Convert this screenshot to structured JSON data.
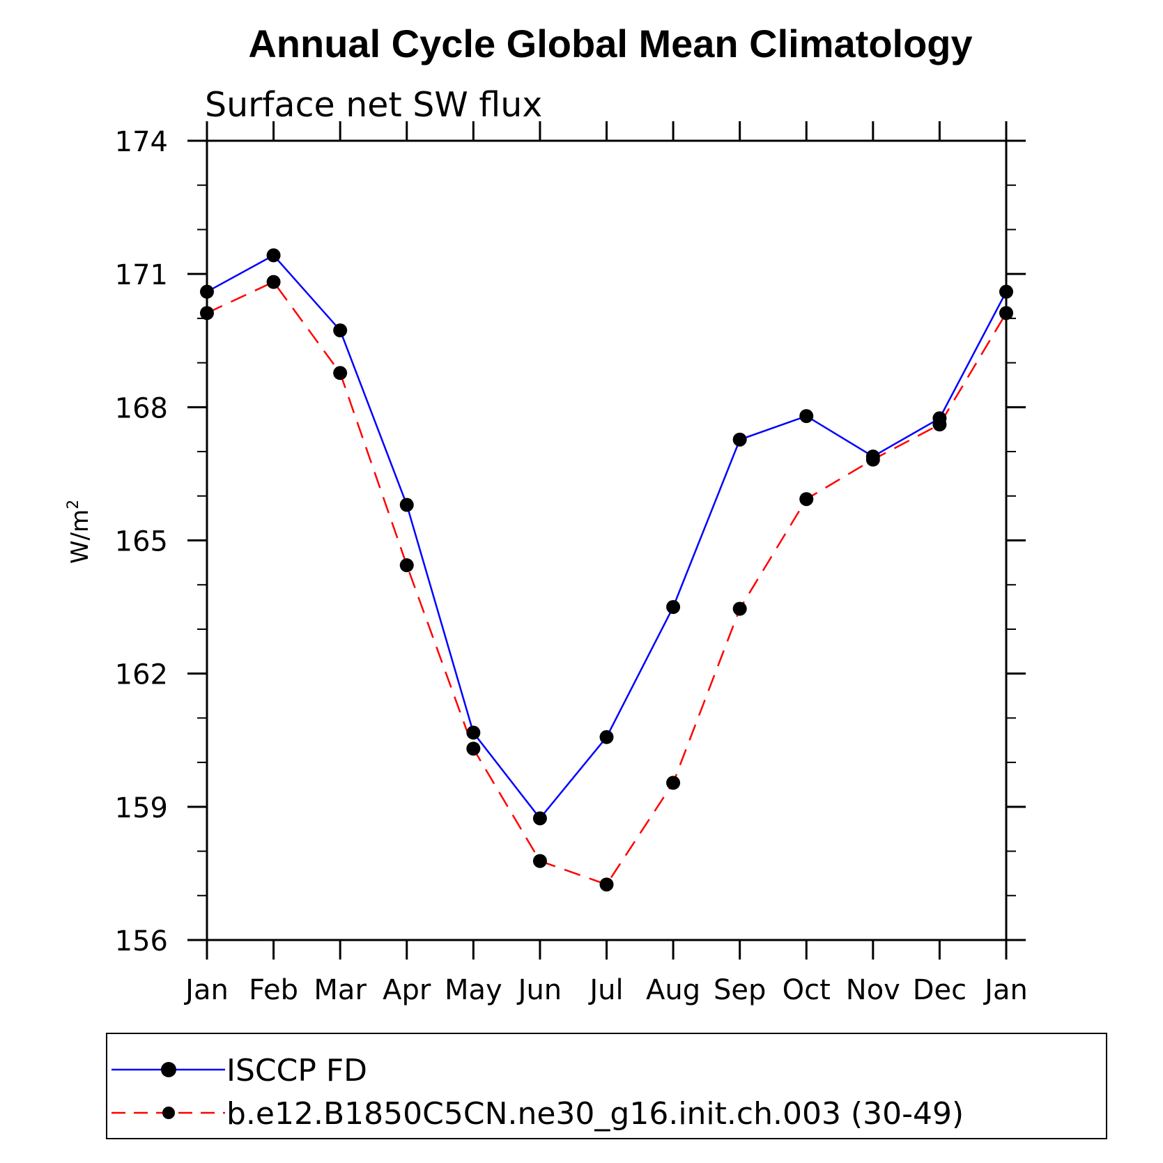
{
  "chart_data": {
    "type": "line",
    "title": "Annual Cycle Global Mean Climatology",
    "subtitle": "Surface net SW flux",
    "ylabel_base": "W/m",
    "ylabel_sup": "2",
    "xlabel": "",
    "categories": [
      "Jan",
      "Feb",
      "Mar",
      "Apr",
      "May",
      "Jun",
      "Jul",
      "Aug",
      "Sep",
      "Oct",
      "Nov",
      "Dec",
      "Jan"
    ],
    "ylim": [
      156,
      174
    ],
    "yticks": [
      156,
      159,
      162,
      165,
      168,
      171,
      174
    ],
    "yticks_minor_step": 1,
    "series": [
      {
        "name": "ISCCP FD",
        "color": "#0000ff",
        "dash": "solid",
        "values": [
          170.6,
          171.42,
          169.73,
          165.8,
          160.67,
          158.74,
          160.57,
          163.5,
          167.27,
          167.8,
          166.89,
          167.75,
          170.6
        ]
      },
      {
        "name": "b.e12.B1850C5CN.ne30_g16.init.ch.003 (30-49)",
        "color": "#ff0000",
        "dash": "dashed",
        "values": [
          170.12,
          170.82,
          168.77,
          164.44,
          160.31,
          157.78,
          157.25,
          159.54,
          163.46,
          165.93,
          166.82,
          167.61,
          170.12
        ]
      }
    ],
    "marker": "filled-circle",
    "marker_color": "#000000",
    "legend_position": "bottom",
    "grid": false
  }
}
